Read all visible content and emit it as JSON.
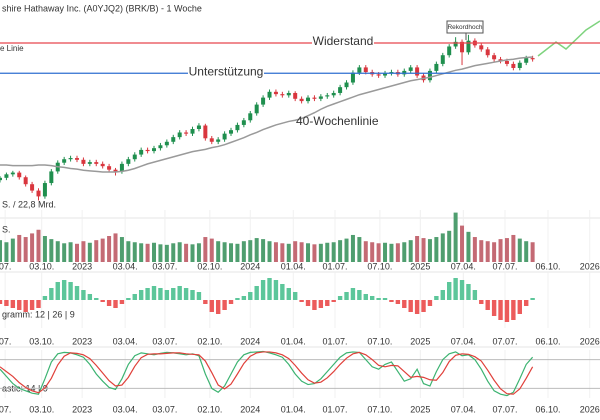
{
  "chart_data": [
    {
      "type": "candlestick",
      "title": "shire Hathaway Inc. (A0YJQ2) (BRK/B) - 1 Woche",
      "subtitle": "S. / 22,8 Mrd.",
      "xlim": [
        0,
        93.5
      ],
      "ylim": [
        230,
        600
      ],
      "up_color": "#1f8f4e",
      "down_color": "#d9363e",
      "open": [
        290,
        294,
        300,
        303,
        295,
        283,
        272,
        262,
        285,
        305,
        320,
        326,
        328,
        325,
        318,
        321,
        318,
        314,
        308,
        305,
        318,
        326,
        334,
        342,
        340,
        345,
        350,
        356,
        364,
        372,
        370,
        378,
        384,
        362,
        356,
        360,
        370,
        376,
        385,
        393,
        405,
        420,
        432,
        442,
        438,
        436,
        440,
        430,
        426,
        432,
        430,
        434,
        436,
        440,
        450,
        458,
        475,
        484,
        476,
        472,
        470,
        474,
        476,
        472,
        478,
        484,
        470,
        462,
        478,
        490,
        505,
        520,
        528,
        510,
        530,
        522,
        515,
        505,
        498,
        495,
        490,
        483,
        492,
        500
      ],
      "high": [
        297,
        303,
        306,
        306,
        298,
        287,
        276,
        289,
        309,
        324,
        330,
        332,
        332,
        329,
        325,
        325,
        322,
        318,
        311,
        322,
        330,
        338,
        346,
        346,
        349,
        354,
        360,
        368,
        376,
        376,
        382,
        388,
        387,
        366,
        364,
        374,
        380,
        389,
        397,
        409,
        424,
        436,
        446,
        446,
        442,
        444,
        443,
        434,
        436,
        436,
        438,
        440,
        444,
        454,
        462,
        479,
        488,
        488,
        480,
        476,
        478,
        480,
        480,
        482,
        488,
        488,
        474,
        482,
        494,
        509,
        524,
        536,
        532,
        540,
        534,
        526,
        519,
        509,
        502,
        499,
        494,
        496,
        504,
        504
      ],
      "low": [
        286,
        290,
        296,
        291,
        279,
        268,
        255,
        258,
        281,
        301,
        316,
        322,
        321,
        314,
        314,
        314,
        310,
        304,
        298,
        301,
        314,
        322,
        330,
        336,
        336,
        341,
        346,
        352,
        360,
        366,
        366,
        374,
        358,
        352,
        352,
        356,
        366,
        372,
        381,
        389,
        401,
        416,
        428,
        434,
        432,
        432,
        426,
        422,
        422,
        426,
        426,
        430,
        432,
        436,
        446,
        454,
        471,
        472,
        468,
        466,
        466,
        470,
        468,
        468,
        474,
        466,
        458,
        458,
        474,
        486,
        501,
        516,
        488,
        506,
        518,
        511,
        501,
        494,
        491,
        486,
        479,
        479,
        488,
        494
      ],
      "close": [
        294,
        300,
        303,
        295,
        283,
        272,
        262,
        285,
        305,
        320,
        326,
        328,
        325,
        318,
        321,
        318,
        314,
        308,
        305,
        318,
        326,
        334,
        342,
        340,
        345,
        350,
        356,
        364,
        372,
        370,
        378,
        384,
        362,
        356,
        360,
        370,
        376,
        385,
        393,
        405,
        420,
        432,
        442,
        438,
        436,
        440,
        430,
        426,
        432,
        430,
        434,
        436,
        440,
        450,
        458,
        475,
        484,
        476,
        472,
        470,
        474,
        476,
        472,
        478,
        484,
        470,
        462,
        478,
        490,
        505,
        520,
        528,
        510,
        530,
        522,
        515,
        505,
        498,
        495,
        490,
        483,
        492,
        500,
        498
      ],
      "series": [
        {
          "name": "40-Wochenlinie",
          "color": "#9a9a9a",
          "values": [
            316,
            316,
            315,
            315,
            315,
            315,
            316,
            316,
            315,
            313,
            312,
            310,
            309,
            307,
            306,
            305,
            304,
            304,
            304,
            305,
            307,
            310,
            314,
            318,
            321,
            324,
            327,
            330,
            333,
            336,
            339,
            341,
            343,
            346,
            348,
            351,
            355,
            359,
            363,
            368,
            372,
            377,
            381,
            385,
            388,
            391,
            393,
            396,
            401,
            406,
            412,
            417,
            421,
            425,
            429,
            433,
            437,
            440,
            443,
            446,
            449,
            452,
            455,
            458,
            461,
            463,
            465,
            467,
            470,
            473,
            476,
            479,
            481,
            484,
            487,
            489,
            491,
            493,
            495,
            497,
            498,
            500,
            501,
            502
          ]
        }
      ],
      "lines": [
        {
          "name": "Widerstand",
          "value": 526,
          "color": "#e8464e"
        },
        {
          "name": "Unterstützung",
          "value": 474,
          "color": "#2f6fd0"
        }
      ],
      "annotations": [
        {
          "text": "e Linie",
          "color": "#2f6fd0"
        },
        {
          "text": "Rekordhoch"
        }
      ]
    },
    {
      "type": "volume",
      "label": "S.",
      "xlim": [
        0,
        93.5
      ],
      "ylim": [
        0,
        100
      ],
      "up_color": "#4f9e6f",
      "down_color": "#c46a74",
      "values": [
        42,
        38,
        45,
        52,
        48,
        55,
        62,
        50,
        44,
        40,
        36,
        38,
        35,
        40,
        37,
        42,
        45,
        50,
        55,
        48,
        40,
        38,
        36,
        35,
        37,
        34,
        33,
        36,
        38,
        35,
        34,
        36,
        48,
        45,
        40,
        38,
        36,
        35,
        40,
        42,
        46,
        44,
        40,
        38,
        36,
        35,
        40,
        38,
        36,
        34,
        35,
        37,
        38,
        42,
        45,
        52,
        48,
        40,
        38,
        36,
        37,
        35,
        36,
        38,
        42,
        50,
        46,
        44,
        48,
        55,
        60,
        95,
        70,
        58,
        48,
        42,
        40,
        38,
        44,
        46,
        52,
        45,
        40,
        38
      ],
      "xticks": [
        {
          "value": 0.8,
          "label": "07."
        },
        {
          "value": 6.5,
          "label": "03.10."
        },
        {
          "value": 12.8,
          "label": "2023"
        },
        {
          "value": 19.5,
          "label": "03.04."
        },
        {
          "value": 25.7,
          "label": "03.07."
        },
        {
          "value": 32.7,
          "label": "02.10."
        },
        {
          "value": 39,
          "label": "2024"
        },
        {
          "value": 45.7,
          "label": "01.04."
        },
        {
          "value": 52.2,
          "label": "01.07."
        },
        {
          "value": 59.2,
          "label": "07.10."
        },
        {
          "value": 65.5,
          "label": "2025"
        },
        {
          "value": 72.2,
          "label": "07.04."
        },
        {
          "value": 78.7,
          "label": "07.07."
        },
        {
          "value": 85.4,
          "label": "06.10."
        },
        {
          "value": 91.9,
          "label": "2026"
        }
      ]
    },
    {
      "type": "bar",
      "label": "gramm: 12 | 26 | 9",
      "xlim": [
        0,
        93.5
      ],
      "ylim": [
        -14,
        14
      ],
      "pos_color": "#5cc69a",
      "neg_color": "#ec5b5b",
      "values": [
        -2,
        -3,
        -4,
        -5,
        -6,
        -5,
        -4,
        2,
        6,
        9,
        10,
        9,
        7,
        5,
        3,
        1,
        -1,
        -3,
        -4,
        -2,
        1,
        3,
        5,
        6,
        7,
        6,
        5,
        6,
        7,
        6,
        5,
        4,
        -2,
        -6,
        -7,
        -5,
        -2,
        1,
        2,
        4,
        7,
        10,
        11,
        10,
        8,
        6,
        4,
        -1,
        -3,
        -5,
        -4,
        -3,
        -1,
        2,
        4,
        6,
        5,
        3,
        2,
        1,
        1,
        -1,
        -2,
        -4,
        -6,
        -7,
        -6,
        -3,
        2,
        5,
        9,
        11,
        10,
        8,
        5,
        -2,
        -5,
        -8,
        -10,
        -11,
        -10,
        -7,
        -3,
        1
      ],
      "xticks": [
        {
          "value": 0.8,
          "label": "07."
        },
        {
          "value": 6.5,
          "label": "03.10."
        },
        {
          "value": 12.8,
          "label": "2023"
        },
        {
          "value": 19.5,
          "label": "03.04."
        },
        {
          "value": 25.7,
          "label": "03.07."
        },
        {
          "value": 32.7,
          "label": "02.10."
        },
        {
          "value": 39,
          "label": "2024"
        },
        {
          "value": 45.7,
          "label": "01.04."
        },
        {
          "value": 52.2,
          "label": "01.07."
        },
        {
          "value": 59.2,
          "label": "07.10."
        },
        {
          "value": 65.5,
          "label": "2025"
        },
        {
          "value": 72.2,
          "label": "07.04."
        },
        {
          "value": 78.7,
          "label": "07.07."
        },
        {
          "value": 85.4,
          "label": "06.10."
        },
        {
          "value": 91.9,
          "label": "2026"
        }
      ]
    },
    {
      "type": "line",
      "label": "astic: 14 | 9",
      "xlim": [
        0,
        93.5
      ],
      "ylim": [
        0,
        100
      ],
      "levels": [
        20,
        80
      ],
      "series": [
        {
          "color": "#3cb371",
          "values": [
            60,
            45,
            30,
            20,
            15,
            10,
            8,
            40,
            75,
            92,
            95,
            94,
            90,
            85,
            70,
            50,
            35,
            22,
            18,
            40,
            70,
            88,
            94,
            92,
            90,
            93,
            95,
            94,
            92,
            90,
            92,
            88,
            50,
            20,
            12,
            25,
            50,
            75,
            90,
            95,
            96,
            97,
            94,
            90,
            85,
            70,
            50,
            35,
            28,
            30,
            40,
            55,
            70,
            85,
            94,
            96,
            95,
            80,
            65,
            60,
            70,
            75,
            55,
            35,
            40,
            60,
            30,
            25,
            55,
            80,
            92,
            96,
            88,
            90,
            80,
            60,
            35,
            15,
            8,
            5,
            12,
            40,
            70,
            85
          ]
        },
        {
          "color": "#e0403a",
          "values": [
            65,
            55,
            45,
            32,
            22,
            15,
            11,
            21,
            41,
            69,
            87,
            94,
            93,
            90,
            82,
            68,
            52,
            36,
            25,
            27,
            43,
            66,
            84,
            91,
            92,
            92,
            93,
            94,
            94,
            92,
            91,
            90,
            77,
            53,
            27,
            19,
            29,
            50,
            72,
            87,
            94,
            96,
            96,
            94,
            90,
            82,
            68,
            52,
            38,
            31,
            33,
            42,
            55,
            70,
            83,
            92,
            95,
            90,
            80,
            68,
            65,
            68,
            67,
            55,
            43,
            45,
            43,
            38,
            37,
            53,
            76,
            89,
            92,
            91,
            86,
            77,
            58,
            37,
            19,
            9,
            8,
            19,
            41,
            65
          ]
        }
      ],
      "xticks": [
        {
          "value": 0.8,
          "label": "07."
        },
        {
          "value": 6.5,
          "label": "03.10."
        },
        {
          "value": 12.8,
          "label": "2023"
        },
        {
          "value": 19.5,
          "label": "03.04."
        },
        {
          "value": 25.7,
          "label": "03.07."
        },
        {
          "value": 32.7,
          "label": "02.10."
        },
        {
          "value": 39,
          "label": "2024"
        },
        {
          "value": 45.7,
          "label": "01.04."
        },
        {
          "value": 52.2,
          "label": "01.07."
        },
        {
          "value": 59.2,
          "label": "07.10."
        },
        {
          "value": 65.5,
          "label": "2025"
        },
        {
          "value": 72.2,
          "label": "07.04."
        },
        {
          "value": 78.7,
          "label": "07.07."
        },
        {
          "value": 85.4,
          "label": "06.10."
        },
        {
          "value": 91.9,
          "label": "2026"
        }
      ]
    }
  ]
}
